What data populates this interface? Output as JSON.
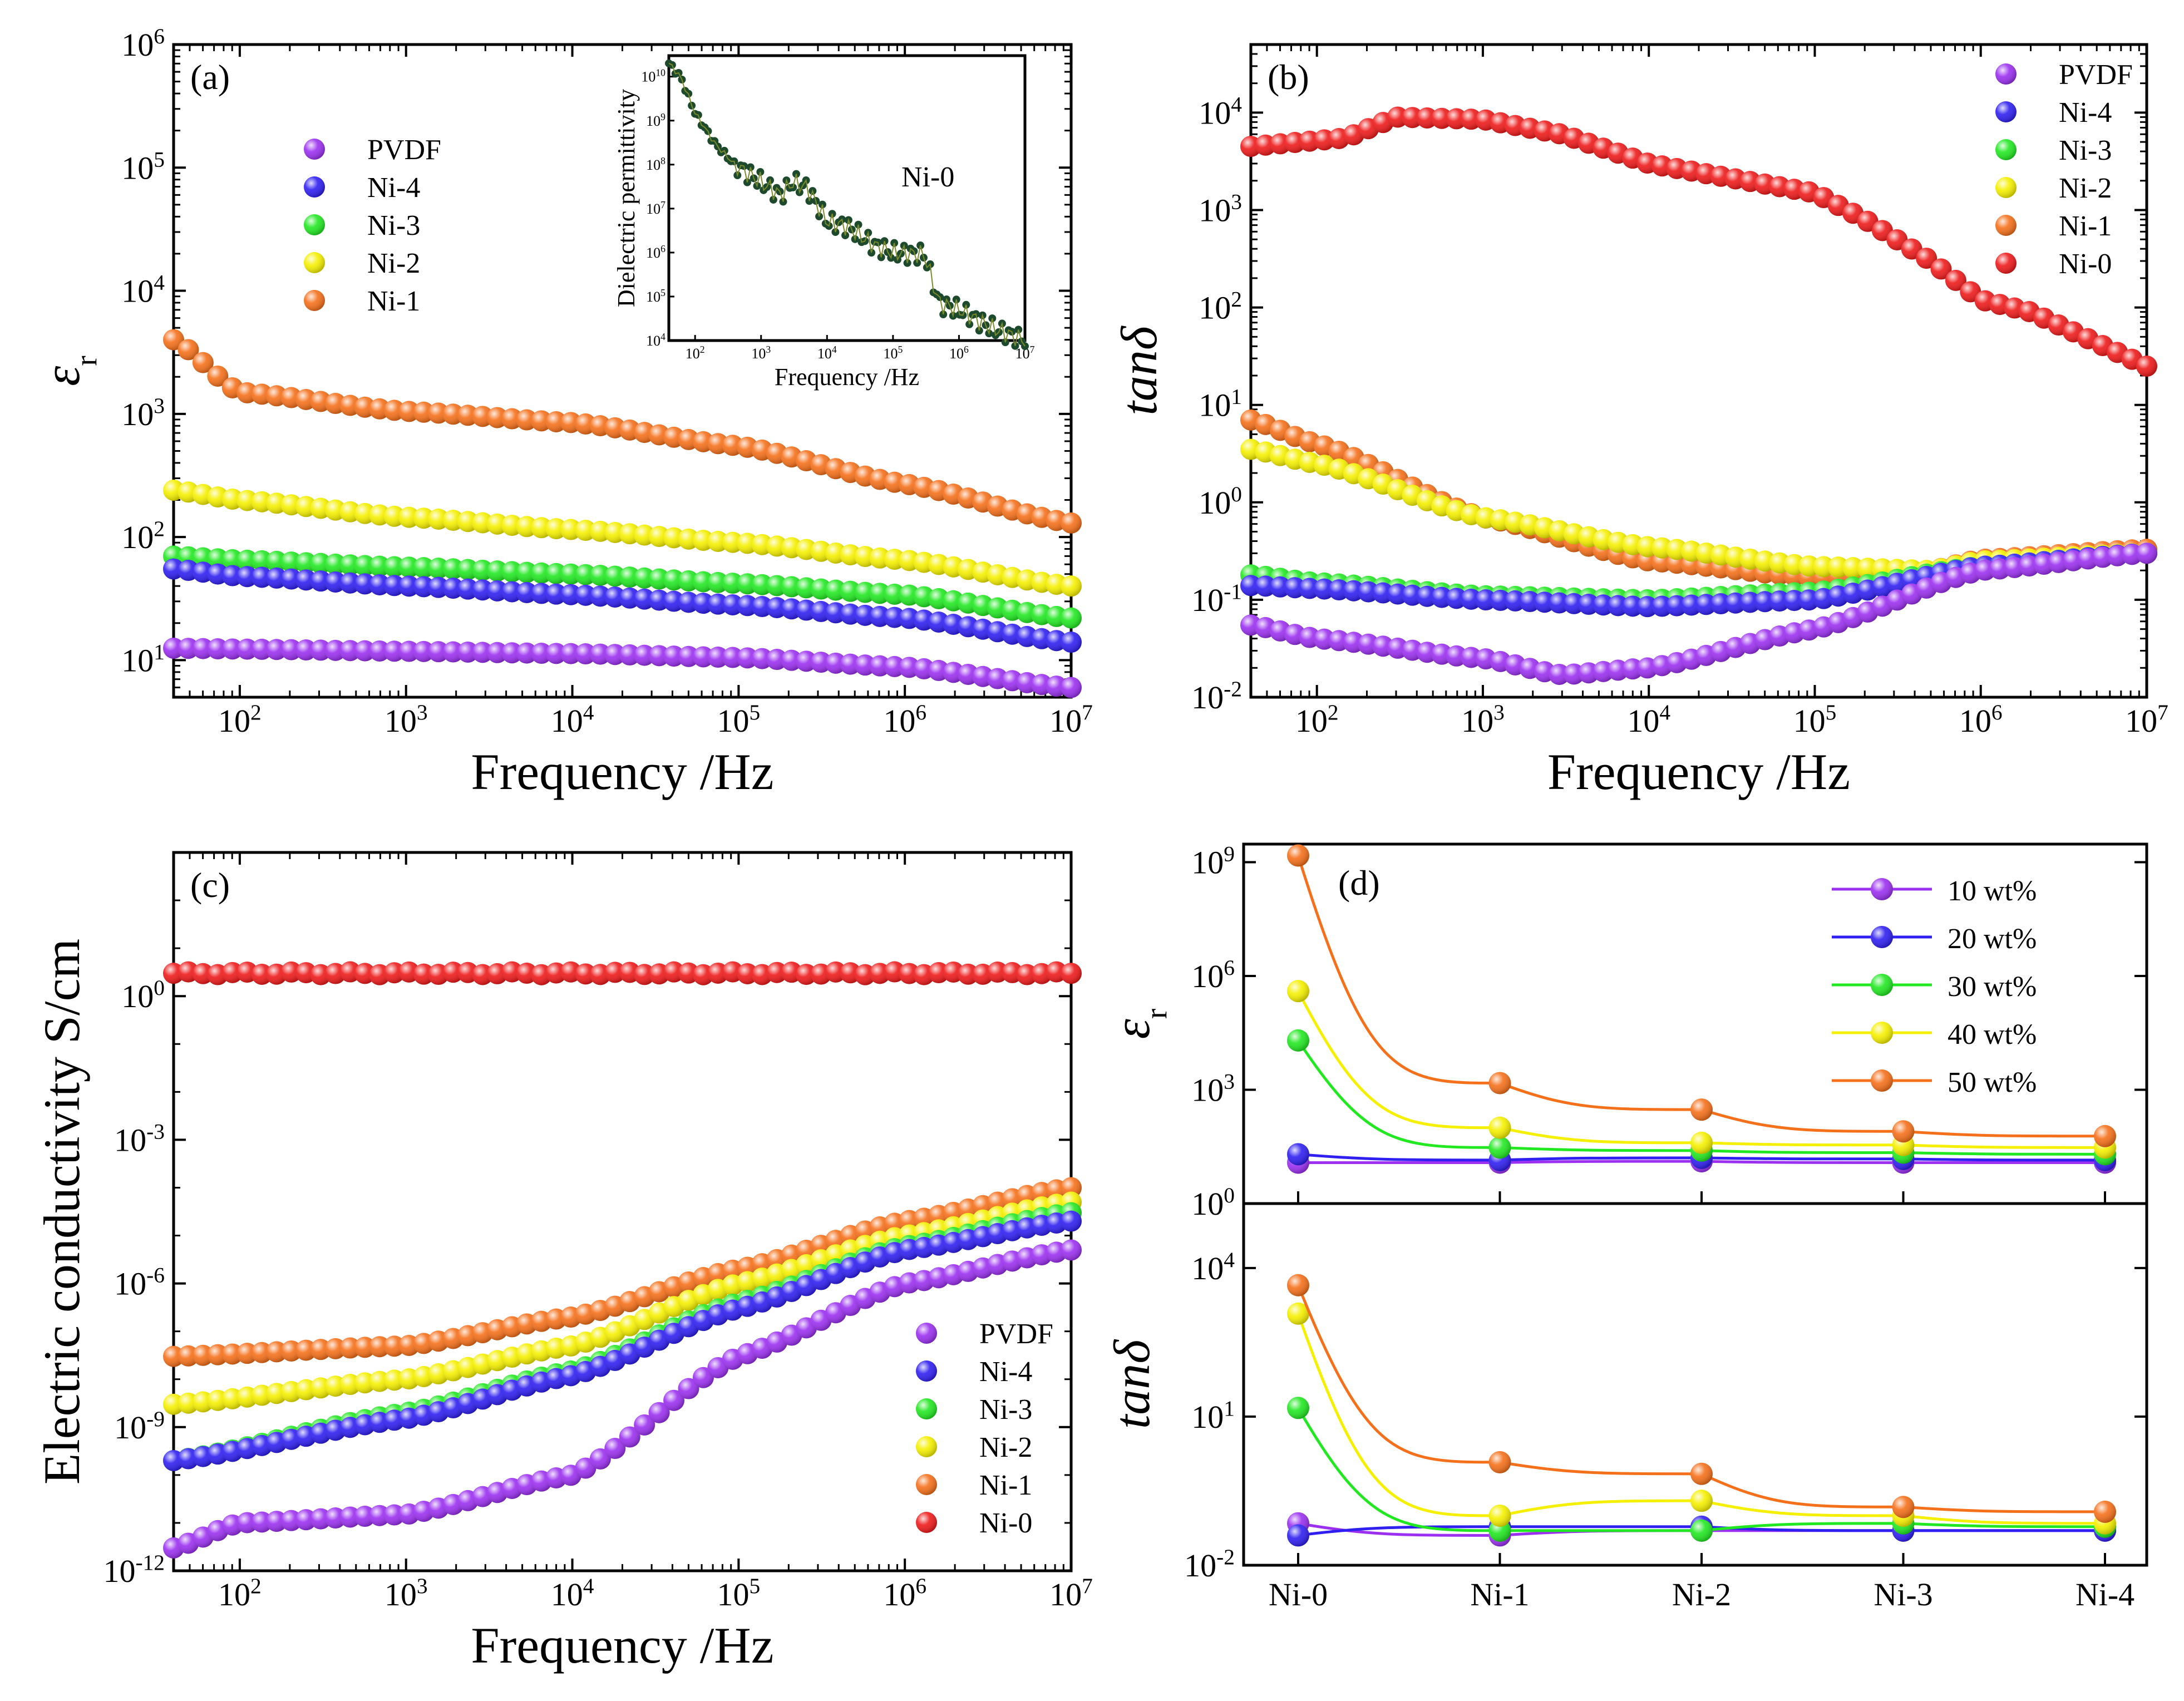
{
  "colors": {
    "PVDF": "#9b30f0",
    "Ni-4": "#2f1ff0",
    "Ni-3": "#22e822",
    "Ni-2": "#f5f000",
    "Ni-1": "#f5701a",
    "Ni-0": "#ee1a1a",
    "inset": "#1d4a2c"
  },
  "chart_data": [
    {
      "id": "a",
      "type": "scatter",
      "panel_label": "(a)",
      "xlabel": "Frequency /Hz",
      "ylabel": "ε",
      "ylabel_sub": "r",
      "xscale": "log",
      "yscale": "log",
      "xlim": [
        40,
        10000000
      ],
      "ylim": [
        5,
        1000000
      ],
      "xticks": [
        "10^2",
        "10^3",
        "10^4",
        "10^5",
        "10^6",
        "10^7"
      ],
      "yticks": [
        "10^1",
        "10^2",
        "10^3",
        "10^4",
        "10^5",
        "10^6"
      ],
      "legend": {
        "placement": "upper-left",
        "entries": [
          "PVDF",
          "Ni-4",
          "Ni-3",
          "Ni-2",
          "Ni-1"
        ]
      },
      "series": [
        {
          "name": "Ni-1",
          "shape": "smooth",
          "points": [
            [
              40,
              4000
            ],
            [
              100,
              1500
            ],
            [
              1000,
              1050
            ],
            [
              10000,
              850
            ],
            [
              100000,
              550
            ],
            [
              1000000,
              270
            ],
            [
              10000000,
              130
            ]
          ]
        },
        {
          "name": "Ni-2",
          "shape": "smooth",
          "points": [
            [
              40,
              240
            ],
            [
              100,
              200
            ],
            [
              1000,
              145
            ],
            [
              10000,
              115
            ],
            [
              100000,
              90
            ],
            [
              1000000,
              65
            ],
            [
              10000000,
              40
            ]
          ]
        },
        {
          "name": "Ni-3",
          "shape": "smooth",
          "points": [
            [
              40,
              70
            ],
            [
              100,
              65
            ],
            [
              1000,
              57
            ],
            [
              10000,
              50
            ],
            [
              100000,
              42
            ],
            [
              1000000,
              34
            ],
            [
              10000000,
              22
            ]
          ]
        },
        {
          "name": "Ni-4",
          "shape": "smooth",
          "points": [
            [
              40,
              55
            ],
            [
              100,
              48
            ],
            [
              1000,
              40
            ],
            [
              10000,
              34
            ],
            [
              100000,
              28
            ],
            [
              1000000,
              22
            ],
            [
              10000000,
              14
            ]
          ]
        },
        {
          "name": "PVDF",
          "shape": "smooth",
          "points": [
            [
              40,
              12.5
            ],
            [
              100,
              12.3
            ],
            [
              1000,
              11.8
            ],
            [
              10000,
              11.3
            ],
            [
              100000,
              10.5
            ],
            [
              1000000,
              8.8
            ],
            [
              10000000,
              6
            ]
          ]
        }
      ],
      "inset": {
        "label": "Ni-0",
        "xlabel": "Frequency /Hz",
        "ylabel": "Dielectric permittivity",
        "xticks": [
          "10^2",
          "10^3",
          "10^4",
          "10^5",
          "10^6",
          "10^7"
        ],
        "yticks": [
          "10^4",
          "10^5",
          "10^6",
          "10^7",
          "10^8",
          "10^9",
          "10^10"
        ],
        "xlim": [
          40,
          10000000
        ],
        "ylim": [
          10000,
          30000000000
        ],
        "points": [
          [
            40,
            20000000000
          ],
          [
            60,
            10000000000
          ],
          [
            100,
            1500000000
          ],
          [
            200,
            300000000
          ],
          [
            400,
            100000000
          ],
          [
            800,
            50000000
          ],
          [
            1000,
            40000000
          ],
          [
            2000,
            20000000
          ],
          [
            3000,
            40000000
          ],
          [
            5000,
            30000000
          ],
          [
            10000,
            5000000
          ],
          [
            20000,
            4000000
          ],
          [
            50000,
            1500000
          ],
          [
            100000,
            1000000
          ],
          [
            300000,
            900000
          ],
          [
            500000,
            70000
          ],
          [
            1000000,
            50000
          ],
          [
            3000000,
            20000
          ],
          [
            10000000,
            10000
          ]
        ]
      }
    },
    {
      "id": "b",
      "type": "scatter",
      "panel_label": "(b)",
      "xlabel": "Frequency /Hz",
      "ylabel": "tanδ",
      "xscale": "log",
      "yscale": "log",
      "xlim": [
        40,
        10000000
      ],
      "ylim": [
        0.01,
        50000
      ],
      "xticks": [
        "10^2",
        "10^3",
        "10^4",
        "10^5",
        "10^6",
        "10^7"
      ],
      "yticks": [
        "10^-2",
        "10^-1",
        "10^0",
        "10^1",
        "10^2",
        "10^3",
        "10^4"
      ],
      "legend": {
        "placement": "upper-right",
        "entries": [
          "PVDF",
          "Ni-4",
          "Ni-3",
          "Ni-2",
          "Ni-1",
          "Ni-0"
        ]
      },
      "series": [
        {
          "name": "Ni-0",
          "shape": "linear",
          "points": [
            [
              40,
              4500
            ],
            [
              150,
              5500
            ],
            [
              300,
              9000
            ],
            [
              1000,
              8500
            ],
            [
              3000,
              6000
            ],
            [
              10000,
              3000
            ],
            [
              100000,
              1500
            ],
            [
              200000,
              800
            ],
            [
              500000,
              300
            ],
            [
              1000000,
              120
            ],
            [
              2000000,
              90
            ],
            [
              10000000,
              25
            ]
          ]
        },
        {
          "name": "Ni-1",
          "shape": "smooth",
          "points": [
            [
              40,
              7
            ],
            [
              100,
              4
            ],
            [
              1000,
              0.7
            ],
            [
              10000,
              0.25
            ],
            [
              100000,
              0.17
            ],
            [
              500000,
              0.2
            ],
            [
              1000000,
              0.26
            ],
            [
              10000000,
              0.33
            ]
          ]
        },
        {
          "name": "Ni-2",
          "shape": "smooth",
          "points": [
            [
              40,
              3.5
            ],
            [
              100,
              2.5
            ],
            [
              1000,
              0.7
            ],
            [
              10000,
              0.35
            ],
            [
              100000,
              0.22
            ],
            [
              500000,
              0.2
            ],
            [
              1000000,
              0.25
            ],
            [
              10000000,
              0.3
            ]
          ]
        },
        {
          "name": "Ni-3",
          "shape": "smooth",
          "points": [
            [
              40,
              0.18
            ],
            [
              100,
              0.15
            ],
            [
              1000,
              0.11
            ],
            [
              10000,
              0.1
            ],
            [
              100000,
              0.12
            ],
            [
              1000000,
              0.22
            ],
            [
              10000000,
              0.3
            ]
          ]
        },
        {
          "name": "Ni-4",
          "shape": "smooth",
          "points": [
            [
              40,
              0.14
            ],
            [
              100,
              0.13
            ],
            [
              1000,
              0.1
            ],
            [
              10000,
              0.085
            ],
            [
              100000,
              0.1
            ],
            [
              1000000,
              0.22
            ],
            [
              10000000,
              0.3
            ]
          ]
        },
        {
          "name": "PVDF",
          "shape": "smooth",
          "points": [
            [
              40,
              0.055
            ],
            [
              100,
              0.04
            ],
            [
              1000,
              0.025
            ],
            [
              3000,
              0.017
            ],
            [
              10000,
              0.02
            ],
            [
              100000,
              0.05
            ],
            [
              1000000,
              0.2
            ],
            [
              10000000,
              0.3
            ]
          ]
        }
      ]
    },
    {
      "id": "c",
      "type": "scatter",
      "panel_label": "(c)",
      "xlabel": "Frequency /Hz",
      "ylabel": "Electric conductivity S/cm",
      "xscale": "log",
      "yscale": "log",
      "xlim": [
        40,
        10000000
      ],
      "ylim": [
        1e-12,
        1000
      ],
      "xticks": [
        "10^2",
        "10^3",
        "10^4",
        "10^5",
        "10^6",
        "10^7"
      ],
      "yticks": [
        "10^-12",
        "10^-9",
        "10^-6",
        "10^-3",
        "10^0"
      ],
      "legend": {
        "placement": "lower-right",
        "entries": [
          "PVDF",
          "Ni-4",
          "Ni-3",
          "Ni-2",
          "Ni-1",
          "Ni-0"
        ]
      },
      "series": [
        {
          "name": "Ni-0",
          "shape": "linear",
          "points": [
            [
              40,
              3
            ],
            [
              10000000,
              3
            ]
          ]
        },
        {
          "name": "Ni-1",
          "shape": "smooth",
          "points": [
            [
              40,
              3e-08
            ],
            [
              1000,
              5e-08
            ],
            [
              10000,
              2e-07
            ],
            [
              100000,
              2e-06
            ],
            [
              1000000,
              2e-05
            ],
            [
              10000000,
              0.0001
            ]
          ]
        },
        {
          "name": "Ni-2",
          "shape": "smooth",
          "points": [
            [
              40,
              3e-09
            ],
            [
              1000,
              1e-08
            ],
            [
              10000,
              5e-08
            ],
            [
              100000,
              1e-06
            ],
            [
              1000000,
              1e-05
            ],
            [
              10000000,
              5e-05
            ]
          ]
        },
        {
          "name": "Ni-3",
          "shape": "smooth",
          "points": [
            [
              40,
              2e-10
            ],
            [
              1000,
              2e-09
            ],
            [
              10000,
              1.5e-08
            ],
            [
              100000,
              4e-07
            ],
            [
              1000000,
              6e-06
            ],
            [
              10000000,
              3e-05
            ]
          ]
        },
        {
          "name": "Ni-4",
          "shape": "smooth",
          "points": [
            [
              40,
              2e-10
            ],
            [
              1000,
              1.5e-09
            ],
            [
              10000,
              1.2e-08
            ],
            [
              100000,
              3e-07
            ],
            [
              1000000,
              5e-06
            ],
            [
              10000000,
              2e-05
            ]
          ]
        },
        {
          "name": "PVDF",
          "shape": "smooth",
          "points": [
            [
              40,
              3e-12
            ],
            [
              100,
              1e-11
            ],
            [
              1000,
              1.5e-11
            ],
            [
              10000,
              1e-10
            ],
            [
              100000,
              3e-08
            ],
            [
              1000000,
              1e-06
            ],
            [
              10000000,
              5e-06
            ]
          ]
        }
      ]
    },
    {
      "id": "d",
      "type": "line",
      "panel_label": "(d)",
      "categories": [
        "Ni-0",
        "Ni-1",
        "Ni-2",
        "Ni-3",
        "Ni-4"
      ],
      "legend": {
        "placement": "upper-right",
        "entries": [
          "10 wt%",
          "20 wt%",
          "30 wt%",
          "40 wt%",
          "50 wt%"
        ]
      },
      "series_colors": {
        "10 wt%": "PVDF",
        "20 wt%": "Ni-4",
        "30 wt%": "Ni-3",
        "40 wt%": "Ni-2",
        "50 wt%": "Ni-1"
      },
      "top": {
        "ylabel": "ε",
        "ylabel_sub": "r",
        "yscale": "log",
        "ylim": [
          1,
          3000000000
        ],
        "yticks": [
          "10^0",
          "10^3",
          "10^6",
          "10^9"
        ],
        "series": [
          {
            "name": "10 wt%",
            "values": [
              12,
              12,
              13,
              12,
              12
            ]
          },
          {
            "name": "20 wt%",
            "values": [
              20,
              14,
              16,
              15,
              14
            ]
          },
          {
            "name": "30 wt%",
            "values": [
              20000,
              30,
              25,
              22,
              20
            ]
          },
          {
            "name": "40 wt%",
            "values": [
              400000,
              100,
              40,
              35,
              30
            ]
          },
          {
            "name": "50 wt%",
            "values": [
              1500000000,
              1500,
              300,
              80,
              60
            ]
          }
        ]
      },
      "bottom": {
        "ylabel": "tanδ",
        "yscale": "log",
        "ylim": [
          0.01,
          200000
        ],
        "yticks": [
          "10^-2",
          "10^1",
          "10^4"
        ],
        "series": [
          {
            "name": "10 wt%",
            "values": [
              0.07,
              0.04,
              0.05,
              0.05,
              0.05
            ]
          },
          {
            "name": "20 wt%",
            "values": [
              0.04,
              0.06,
              0.06,
              0.05,
              0.05
            ]
          },
          {
            "name": "30 wt%",
            "values": [
              15,
              0.05,
              0.05,
              0.07,
              0.06
            ]
          },
          {
            "name": "40 wt%",
            "values": [
              1200,
              0.1,
              0.2,
              0.1,
              0.07
            ]
          },
          {
            "name": "50 wt%",
            "values": [
              4500,
              1.2,
              0.7,
              0.15,
              0.12
            ]
          }
        ]
      }
    }
  ]
}
